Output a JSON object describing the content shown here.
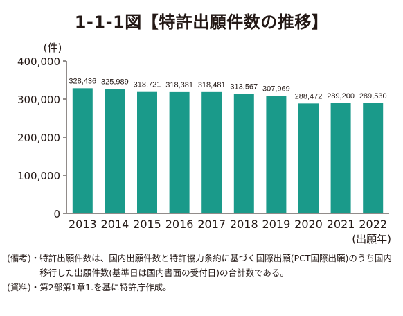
{
  "title": "1-1-1図【特許出願件数の推移】",
  "chart_data": {
    "type": "bar",
    "title": "1-1-1図【特許出願件数の推移】",
    "ylabel": "(件)",
    "xlabel": "(出願年)",
    "categories": [
      "2013",
      "2014",
      "2015",
      "2016",
      "2017",
      "2018",
      "2019",
      "2020",
      "2021",
      "2022"
    ],
    "values": [
      328436,
      325989,
      318721,
      318381,
      318481,
      313567,
      307969,
      288472,
      289200,
      289530
    ],
    "value_labels": [
      "328,436",
      "325,989",
      "318,721",
      "318,381",
      "318,481",
      "313,567",
      "307,969",
      "288,472",
      "289,200",
      "289,530"
    ],
    "ylim": [
      0,
      400000
    ],
    "yticks": [
      0,
      100000,
      200000,
      300000,
      400000
    ],
    "ytick_labels": [
      "0",
      "100,000",
      "200,000",
      "300,000",
      "400,000"
    ],
    "bar_color": "#1a9a8a",
    "grid": false,
    "legend": "none"
  },
  "notes": {
    "remarks_label": "(備考)・",
    "remarks_text": "特許出願件数は、国内出願件数と特許協力条約に基づく国際出願(PCT国際出願)のうち国内移行した出願件数(基準日は国内書面の受付日)の合計数である。",
    "source_label": "(資料)・",
    "source_text": "第2部第1章1.を基に特許庁作成。"
  }
}
